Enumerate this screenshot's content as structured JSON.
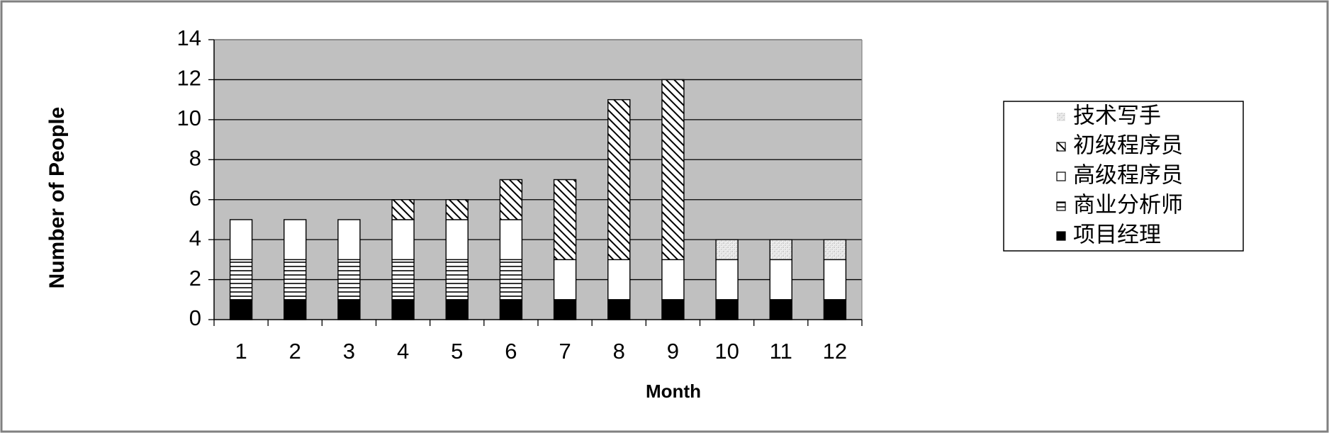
{
  "chart_data": {
    "type": "bar",
    "stacked": true,
    "xlabel": "Month",
    "ylabel": "Number of People",
    "categories": [
      "1",
      "2",
      "3",
      "4",
      "5",
      "6",
      "7",
      "8",
      "9",
      "10",
      "11",
      "12"
    ],
    "ylim": [
      0,
      14
    ],
    "yticks": [
      "0",
      "2",
      "4",
      "6",
      "8",
      "10",
      "12",
      "14"
    ],
    "grid": true,
    "legend_position": "right",
    "plot_background": "#c0c0c0",
    "series": [
      {
        "name": "项目经理",
        "pattern": "solid-black",
        "values": [
          1,
          1,
          1,
          1,
          1,
          1,
          1,
          1,
          1,
          1,
          1,
          1
        ]
      },
      {
        "name": "商业分析师",
        "pattern": "horizontal-lines",
        "values": [
          2,
          2,
          2,
          2,
          2,
          2,
          0,
          0,
          0,
          0,
          0,
          0
        ]
      },
      {
        "name": "高级程序员",
        "pattern": "white",
        "values": [
          2,
          2,
          2,
          2,
          2,
          2,
          2,
          2,
          2,
          2,
          2,
          2
        ]
      },
      {
        "name": "初级程序员",
        "pattern": "diagonal-hatch",
        "values": [
          0,
          0,
          0,
          1,
          1,
          2,
          4,
          8,
          9,
          0,
          0,
          0
        ]
      },
      {
        "name": "技术写手",
        "pattern": "light-dotted",
        "values": [
          0,
          0,
          0,
          0,
          0,
          0,
          0,
          0,
          0,
          1,
          1,
          1
        ]
      }
    ],
    "legend_order": [
      "技术写手",
      "初级程序员",
      "高级程序员",
      "商业分析师",
      "项目经理"
    ]
  }
}
